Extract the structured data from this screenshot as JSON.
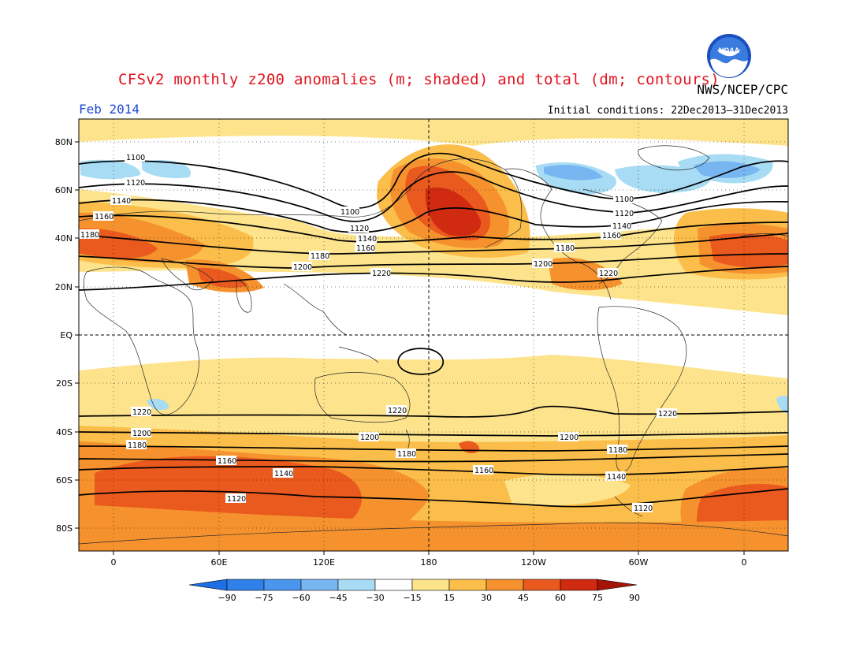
{
  "title": "CFSv2 monthly z200 anomalies (m; shaded) and total (dm; contours)",
  "agency": "NWS/NCEP/CPC",
  "period": "Feb 2014",
  "initial_conditions": "Initial conditions: 22Dec2013–31Dec2013",
  "logo_text": "NOAA",
  "lat_labels": [
    "80N",
    "60N",
    "40N",
    "20N",
    "EQ",
    "20S",
    "40S",
    "60S",
    "80S"
  ],
  "lon_labels": [
    "0",
    "60E",
    "120E",
    "180",
    "120W",
    "60W",
    "0"
  ],
  "colorbar": {
    "labels": [
      "−90",
      "−75",
      "−60",
      "−45",
      "−30",
      "−15",
      "15",
      "30",
      "45",
      "60",
      "75",
      "90"
    ],
    "colors": [
      "#1e6ee6",
      "#2f80e8",
      "#4a96ee",
      "#78b6f2",
      "#a8dcf4",
      "#ffffff",
      "#fde48c",
      "#fbbe4a",
      "#f6922e",
      "#ea5a1e",
      "#d02a10",
      "#a61408"
    ]
  },
  "contour_labels": [
    "1100",
    "1120",
    "1140",
    "1160",
    "1180",
    "1200",
    "1220"
  ]
}
